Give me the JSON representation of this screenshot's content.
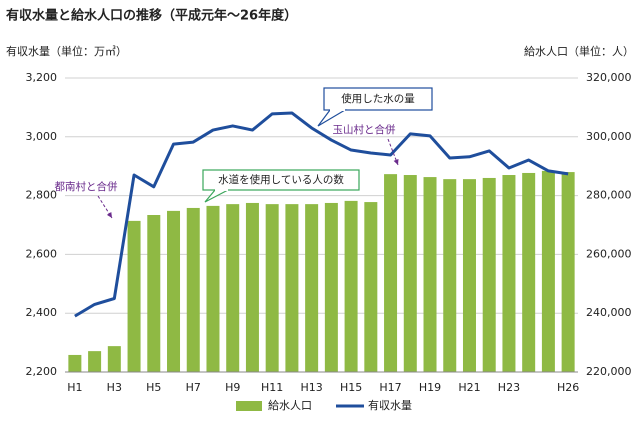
{
  "chart_data": {
    "type": "bar-line",
    "title": "有収水量と給水人口の推移（平成元年～26年度）",
    "y_label": "有収水量（単位：万㎥）",
    "y2_label": "給水人口（単位：人）",
    "categories": [
      "H1",
      null,
      "H3",
      null,
      "H5",
      null,
      "H7",
      null,
      "H9",
      null,
      "H11",
      null,
      "H13",
      null,
      "H15",
      null,
      "H17",
      null,
      "H19",
      null,
      "H21",
      null,
      "H23",
      null,
      null,
      "H26"
    ],
    "series": [
      {
        "name": "給水人口",
        "type": "bar",
        "axis": "y2",
        "color": "#8fb944",
        "values": [
          225800,
          227100,
          228800,
          271400,
          273400,
          274800,
          275800,
          276500,
          277100,
          277500,
          277100,
          277100,
          277100,
          277500,
          278200,
          277800,
          287300,
          287000,
          286300,
          285600,
          285600,
          286000,
          287000,
          287700,
          288400,
          288000
        ]
      },
      {
        "name": "有収水量",
        "type": "line",
        "axis": "y",
        "color": "#1f4e9c",
        "values": [
          2390,
          2430,
          2450,
          2870,
          2830,
          2975,
          2982,
          3023,
          3037,
          3023,
          3078,
          3081,
          3030,
          2989,
          2955,
          2945,
          2938,
          3010,
          3003,
          2928,
          2932,
          2952,
          2894,
          2921,
          2884,
          2874
        ]
      }
    ],
    "ylim": [
      2200,
      3200
    ],
    "yticks": [
      {
        "value": 2200,
        "label": "2,200"
      },
      {
        "value": 2400,
        "label": "2,400"
      },
      {
        "value": 2600,
        "label": "2,600"
      },
      {
        "value": 2800,
        "label": "2,800"
      },
      {
        "value": 3000,
        "label": "3,000"
      },
      {
        "value": 3200,
        "label": "3,200"
      }
    ],
    "y2lim": [
      220000,
      320000
    ],
    "y2ticks": [
      {
        "value": 220000,
        "label": "220,000"
      },
      {
        "value": 240000,
        "label": "240,000"
      },
      {
        "value": 260000,
        "label": "260,000"
      },
      {
        "value": 280000,
        "label": "280,000"
      },
      {
        "value": 300000,
        "label": "300,000"
      },
      {
        "value": 320000,
        "label": "320,000"
      }
    ],
    "grid": true,
    "legend": "bottom",
    "annotations": [
      "使用した水の量",
      "水道を使用している人の数",
      "都南村と合併",
      "玉山村と合併"
    ]
  }
}
